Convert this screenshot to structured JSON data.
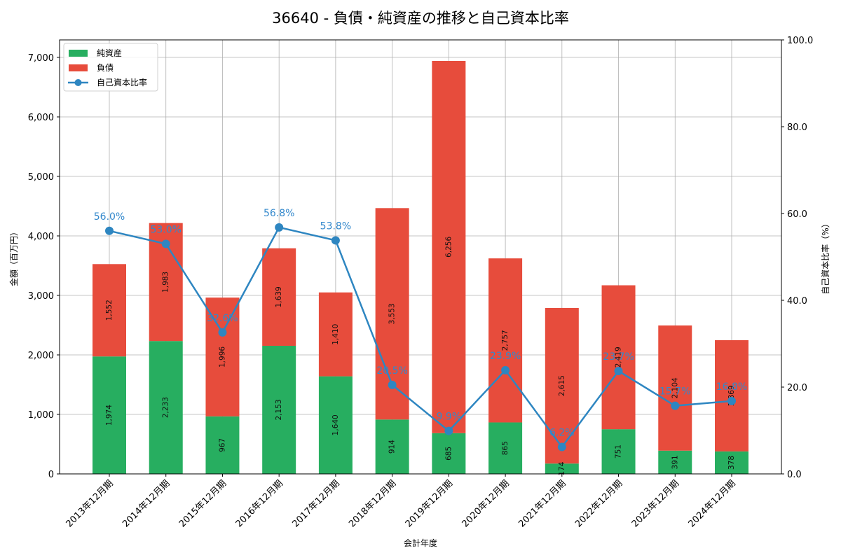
{
  "title": "36640 - 負債・純資産の推移と自己資本比率",
  "colors": {
    "net_assets": "#27ae60",
    "liabilities": "#e74c3c",
    "equity_ratio": "#2e86c1",
    "grid": "#b0b0b0"
  },
  "legend": {
    "items": [
      {
        "label": "純資産",
        "type": "bar",
        "color": "#27ae60"
      },
      {
        "label": "負債",
        "type": "bar",
        "color": "#e74c3c"
      },
      {
        "label": "自己資本比率",
        "type": "line",
        "color": "#2e86c1"
      }
    ]
  },
  "chart_data": {
    "type": "bar",
    "stacked": true,
    "title": "36640 - 負債・純資産の推移と自己資本比率",
    "xlabel": "会計年度",
    "ylabel": "金額（百万円）",
    "y2label": "自己資本比率（%）",
    "ylim": [
      0,
      7294
    ],
    "y2lim": [
      0,
      100
    ],
    "yticks": [
      0,
      1000,
      2000,
      3000,
      4000,
      5000,
      6000,
      7000
    ],
    "yticklabels": [
      "0",
      "1,000",
      "2,000",
      "3,000",
      "4,000",
      "5,000",
      "6,000",
      "7,000"
    ],
    "y2ticks": [
      0,
      20,
      40,
      60,
      80,
      100
    ],
    "y2ticklabels": [
      "0.0",
      "20.0",
      "40.0",
      "60.0",
      "80.0",
      "100.0"
    ],
    "grid": true,
    "legend_position": "upper left",
    "categories": [
      "2013年12月期",
      "2014年12月期",
      "2015年12月期",
      "2016年12月期",
      "2017年12月期",
      "2018年12月期",
      "2019年12月期",
      "2020年12月期",
      "2021年12月期",
      "2022年12月期",
      "2023年12月期",
      "2024年12月期"
    ],
    "series": [
      {
        "name": "純資産",
        "type": "bar",
        "axis": "left",
        "values": [
          1974,
          2233,
          967,
          2153,
          1640,
          914,
          685,
          865,
          174,
          751,
          391,
          378
        ],
        "labels": [
          "1,974",
          "2,233",
          "967",
          "2,153",
          "1,640",
          "914",
          "685",
          "865",
          "174",
          "751",
          "391",
          "378"
        ]
      },
      {
        "name": "負債",
        "type": "bar",
        "axis": "left",
        "values": [
          1552,
          1983,
          1996,
          1639,
          1410,
          3553,
          6256,
          2757,
          2615,
          2419,
          2104,
          1869
        ],
        "labels": [
          "1,552",
          "1,983",
          "1,996",
          "1,639",
          "1,410",
          "3,553",
          "6,256",
          "2,757",
          "2,615",
          "2,419",
          "2,104",
          "1,869"
        ]
      },
      {
        "name": "自己資本比率",
        "type": "line",
        "axis": "right",
        "values": [
          56.0,
          53.0,
          32.6,
          56.8,
          53.8,
          20.5,
          9.9,
          23.9,
          6.2,
          23.7,
          15.7,
          16.8
        ],
        "labels": [
          "56.0%",
          "53.0%",
          "32.6%",
          "56.8%",
          "53.8%",
          "20.5%",
          "9.9%",
          "23.9%",
          "6.2%",
          "23.7%",
          "15.7%",
          "16.8%"
        ]
      }
    ]
  }
}
